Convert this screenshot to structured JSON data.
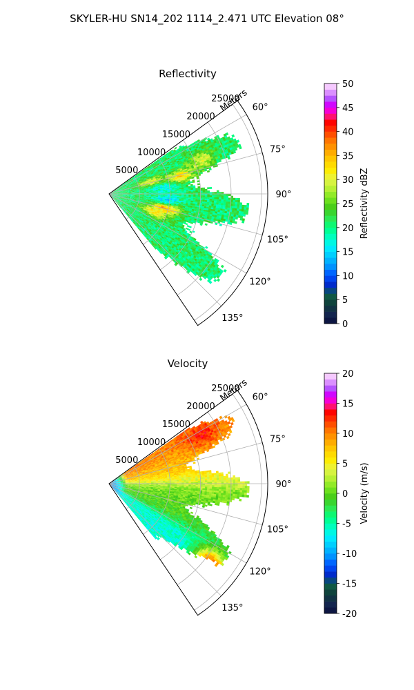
{
  "figure": {
    "title": "SKYLER-HU  SN14_202  1114_2.471 UTC Elevation 08°"
  },
  "chart_data": [
    {
      "type": "heatmap",
      "subtype": "polar-sector (radar PPI)",
      "title": "Reflectivity",
      "radial_axis_label": "Meters",
      "radial_ticks": [
        5000,
        10000,
        15000,
        20000,
        25000
      ],
      "radial_range": [
        0,
        26000
      ],
      "angle_ticks": [
        "60°",
        "75°",
        "90°",
        "105°",
        "120°",
        "135°"
      ],
      "angle_tick_values": [
        60,
        75,
        90,
        105,
        120,
        135
      ],
      "angle_range": [
        54,
        146
      ],
      "grid": true,
      "colorbar": {
        "label": "Reflectivity dBZ",
        "range": [
          0,
          50
        ],
        "ticks": [
          0,
          5,
          10,
          15,
          20,
          25,
          30,
          35,
          40,
          45,
          50
        ]
      },
      "data_extent": {
        "max_range": 23000,
        "min_angle": 55,
        "max_angle": 140
      },
      "features": [
        {
          "kind": "fill",
          "value": 21
        },
        {
          "kind": "core",
          "angle": 74,
          "range": 7000,
          "value": 31
        },
        {
          "kind": "core",
          "angle": 76,
          "range": 12000,
          "value": 34
        },
        {
          "kind": "core",
          "angle": 70,
          "range": 16000,
          "value": 30
        },
        {
          "kind": "core",
          "angle": 104,
          "range": 9500,
          "value": 38
        },
        {
          "kind": "core",
          "angle": 112,
          "range": 8000,
          "value": 33
        },
        {
          "kind": "core",
          "angle": 84,
          "range": 9000,
          "value": 17
        },
        {
          "kind": "core",
          "angle": 96,
          "range": 9500,
          "value": 15
        }
      ]
    },
    {
      "type": "heatmap",
      "subtype": "polar-sector (radar PPI)",
      "title": "Velocity",
      "radial_axis_label": "Meters",
      "radial_ticks": [
        5000,
        10000,
        15000,
        20000,
        25000
      ],
      "radial_range": [
        0,
        26000
      ],
      "angle_ticks": [
        "60°",
        "75°",
        "90°",
        "105°",
        "120°",
        "135°"
      ],
      "angle_tick_values": [
        60,
        75,
        90,
        105,
        120,
        135
      ],
      "angle_range": [
        54,
        146
      ],
      "grid": true,
      "colorbar": {
        "label": "Velocity (m/s)",
        "range": [
          -20,
          20
        ],
        "ticks": [
          -20,
          -15,
          -10,
          -5,
          0,
          5,
          10,
          15,
          20
        ]
      },
      "data_extent": {
        "max_range": 23000,
        "min_angle": 55,
        "max_angle": 140
      },
      "features": [
        {
          "kind": "near_range",
          "range": 3000,
          "value": -11
        },
        {
          "kind": "gradient_by_angle",
          "angle": 60,
          "value": 10
        },
        {
          "kind": "gradient_by_angle",
          "angle": 80,
          "value": 7
        },
        {
          "kind": "gradient_by_angle",
          "angle": 95,
          "value": 1
        },
        {
          "kind": "gradient_by_angle",
          "angle": 115,
          "value": -1
        },
        {
          "kind": "gradient_by_angle",
          "angle": 125,
          "value": -6
        },
        {
          "kind": "core",
          "angle": 62,
          "range": 17000,
          "value": 13
        },
        {
          "kind": "core",
          "angle": 128,
          "range": 21000,
          "value": 11
        }
      ]
    }
  ]
}
